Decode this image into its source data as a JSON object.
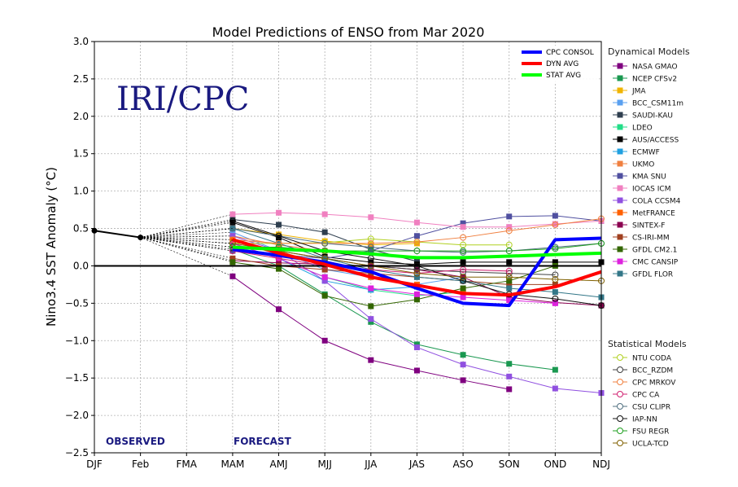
{
  "chart_data": {
    "type": "line",
    "title": "Model Predictions of ENSO from Mar 2020",
    "ylabel": "Nino3.4 SST Anomaly (°C)",
    "xlabel": "",
    "watermark": "IRI/CPC",
    "observed_label": "OBSERVED",
    "forecast_label": "FORECAST",
    "categories": [
      "DJF",
      "Feb",
      "FMA",
      "MAM",
      "AMJ",
      "MJJ",
      "JJA",
      "JAS",
      "ASO",
      "SON",
      "OND",
      "NDJ"
    ],
    "ylim": [
      -2.5,
      3.0
    ],
    "yticks": [
      "3.0",
      "2.5",
      "2.0",
      "1.5",
      "1.0",
      "0.5",
      "0.0",
      "−0.5",
      "−1.0",
      "−1.5",
      "−2.0",
      "−2.5"
    ],
    "grid": true,
    "observed": [
      0.47,
      0.38
    ],
    "consensus_series": [
      {
        "name": "CPC CONSOL",
        "color": "#0000ff",
        "values": [
          null,
          null,
          null,
          0.22,
          0.14,
          0.05,
          -0.08,
          -0.3,
          -0.5,
          -0.53,
          0.35,
          0.37
        ]
      },
      {
        "name": "DYN AVG",
        "color": "#ff0000",
        "values": [
          null,
          null,
          null,
          0.35,
          0.17,
          0.02,
          -0.15,
          -0.26,
          -0.37,
          -0.39,
          -0.28,
          -0.08
        ]
      },
      {
        "name": "STAT AVG",
        "color": "#00ff00",
        "values": [
          null,
          null,
          null,
          0.25,
          0.22,
          0.2,
          0.16,
          0.11,
          0.11,
          0.13,
          0.15,
          0.17
        ]
      }
    ],
    "dynamical_title": "Dynamical Models",
    "dynamical_series": [
      {
        "name": "NASA GMAO",
        "color": "#7f007f",
        "values": [
          null,
          null,
          null,
          -0.14,
          -0.58,
          -1.0,
          -1.26,
          -1.4,
          -1.53,
          -1.65,
          null,
          null
        ]
      },
      {
        "name": "NCEP CFSv2",
        "color": "#1a9850",
        "values": [
          null,
          null,
          null,
          0.22,
          0.0,
          -0.38,
          -0.75,
          -1.05,
          -1.19,
          -1.31,
          -1.39,
          null
        ]
      },
      {
        "name": "JMA",
        "color": "#f0b400",
        "values": [
          null,
          null,
          null,
          0.5,
          0.42,
          0.33,
          0.28,
          0.3,
          null,
          null,
          null,
          null
        ]
      },
      {
        "name": "BCC_CSM11m",
        "color": "#5aa0f0",
        "values": [
          null,
          null,
          null,
          0.45,
          0.2,
          -0.05,
          -0.15,
          -0.25,
          -0.15,
          null,
          null,
          null
        ]
      },
      {
        "name": "SAUDI-KAU",
        "color": "#2f3f4f",
        "values": [
          null,
          null,
          null,
          0.62,
          0.55,
          0.45,
          0.22,
          0.06,
          null,
          null,
          null,
          null
        ]
      },
      {
        "name": "LDEO",
        "color": "#22dd88",
        "values": [
          null,
          null,
          null,
          0.3,
          0.1,
          -0.15,
          -0.32,
          -0.4,
          -0.35,
          null,
          null,
          null
        ]
      },
      {
        "name": "AUS/ACCESS",
        "color": "#000000",
        "values": [
          null,
          null,
          null,
          0.58,
          0.38,
          0.12,
          0.05,
          0.02,
          0.05,
          0.05,
          0.05,
          0.05
        ]
      },
      {
        "name": "ECMWF",
        "color": "#20a0e0",
        "values": [
          null,
          null,
          null,
          0.3,
          0.1,
          -0.2,
          -0.32,
          -0.28,
          null,
          null,
          null,
          null
        ]
      },
      {
        "name": "UKMO",
        "color": "#f08040",
        "values": [
          null,
          null,
          null,
          0.4,
          0.28,
          0.2,
          null,
          null,
          null,
          null,
          null,
          null
        ]
      },
      {
        "name": "KMA SNU",
        "color": "#5050a0",
        "values": [
          null,
          null,
          null,
          0.2,
          0.15,
          0.1,
          0.2,
          0.4,
          0.57,
          0.66,
          0.67,
          0.6
        ]
      },
      {
        "name": "IOCAS ICM",
        "color": "#f080c0",
        "values": [
          null,
          null,
          null,
          0.69,
          0.71,
          0.69,
          0.65,
          0.58,
          0.52,
          0.52,
          0.56,
          0.6
        ]
      },
      {
        "name": "COLA CCSM4",
        "color": "#9050e0",
        "values": [
          null,
          null,
          null,
          0.4,
          0.2,
          -0.2,
          -0.71,
          -1.09,
          -1.32,
          -1.48,
          -1.64,
          -1.7
        ]
      },
      {
        "name": "MetFRANCE",
        "color": "#ff6000",
        "values": [
          null,
          null,
          null,
          0.35,
          0.2,
          0.0,
          -0.15,
          -0.25,
          -0.35,
          -0.4,
          null,
          null
        ]
      },
      {
        "name": "SINTEX-F",
        "color": "#8b0050",
        "values": [
          null,
          null,
          null,
          0.07,
          0.04,
          0.02,
          0.0,
          -0.05,
          -0.15,
          -0.42,
          -0.49,
          -0.53
        ]
      },
      {
        "name": "CS-IRI-MM",
        "color": "#a04020",
        "values": [
          null,
          null,
          null,
          0.1,
          0.0,
          -0.05,
          -0.1,
          -0.15,
          -0.2,
          -0.25,
          -0.25,
          null
        ]
      },
      {
        "name": "GFDL CM2.1",
        "color": "#336600",
        "values": [
          null,
          null,
          null,
          0.05,
          -0.04,
          -0.4,
          -0.54,
          -0.45,
          -0.3,
          -0.2,
          0.0,
          null
        ]
      },
      {
        "name": "CMC CANSIP",
        "color": "#dd22dd",
        "values": [
          null,
          null,
          null,
          0.3,
          0.1,
          -0.15,
          -0.3,
          -0.38,
          -0.42,
          -0.46,
          -0.5,
          null
        ]
      },
      {
        "name": "GFDL FLOR",
        "color": "#337788",
        "values": [
          null,
          null,
          null,
          0.5,
          0.3,
          0.1,
          -0.05,
          -0.15,
          -0.2,
          -0.3,
          -0.35,
          -0.42
        ]
      }
    ],
    "statistical_title": "Statistical Models",
    "statistical_series": [
      {
        "name": "NTU CODA",
        "color": "#b0d020",
        "values": [
          null,
          null,
          null,
          0.3,
          0.3,
          0.31,
          0.36,
          0.32,
          0.28,
          0.28,
          null,
          null
        ]
      },
      {
        "name": "BCC_RZDM",
        "color": "#404040",
        "values": [
          null,
          null,
          null,
          0.25,
          0.2,
          0.1,
          0.0,
          -0.05,
          -0.08,
          -0.1,
          -0.12,
          null
        ]
      },
      {
        "name": "CPC MRKOV",
        "color": "#f08040",
        "values": [
          null,
          null,
          null,
          0.35,
          0.3,
          0.3,
          0.3,
          0.32,
          0.38,
          0.47,
          0.55,
          0.63
        ]
      },
      {
        "name": "CPC CA",
        "color": "#d02070",
        "values": [
          null,
          null,
          null,
          0.2,
          0.1,
          0.0,
          -0.05,
          -0.1,
          -0.05,
          -0.07,
          null,
          null
        ]
      },
      {
        "name": "CSU CLIPR",
        "color": "#507080",
        "values": [
          null,
          null,
          null,
          0.5,
          0.4,
          0.3,
          0.25,
          0.2,
          0.18,
          0.2,
          0.25,
          0.3
        ]
      },
      {
        "name": "IAP-NN",
        "color": "#111111",
        "values": [
          null,
          null,
          null,
          0.6,
          0.4,
          0.2,
          0.1,
          0.0,
          -0.2,
          -0.38,
          -0.44,
          -0.53
        ]
      },
      {
        "name": "FSU REGR",
        "color": "#20a020",
        "values": [
          null,
          null,
          null,
          0.25,
          0.25,
          0.2,
          0.2,
          0.2,
          0.2,
          0.2,
          0.23,
          0.3
        ]
      },
      {
        "name": "UCLA-TCD",
        "color": "#806000",
        "values": [
          null,
          null,
          null,
          0.3,
          0.2,
          0.1,
          0.0,
          -0.1,
          -0.15,
          -0.15,
          -0.18,
          -0.2
        ]
      }
    ]
  }
}
